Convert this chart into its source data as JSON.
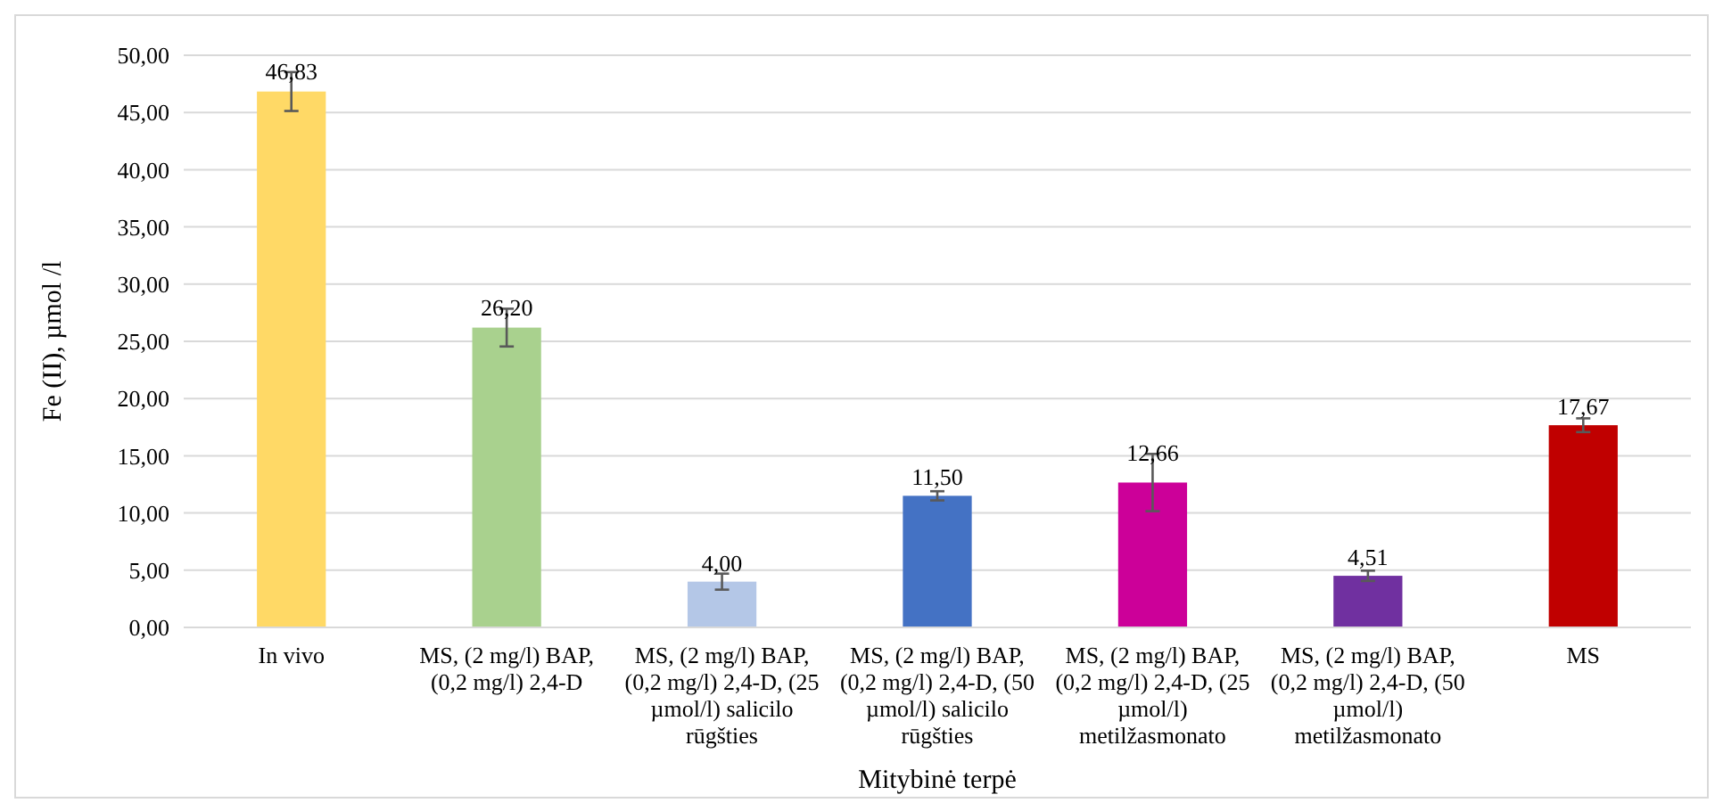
{
  "chart_data": {
    "type": "bar",
    "xlabel": "Mitybinė terpė",
    "ylabel": "Fe (II), µmol /l",
    "categories": [
      "In vivo",
      "MS, (2 mg/l) BAP, (0,2 mg/l) 2,4-D",
      "MS, (2 mg/l) BAP, (0,2 mg/l) 2,4-D, (25 µmol/l) salicilo rūgšties",
      "MS, (2 mg/l) BAP, (0,2 mg/l) 2,4-D, (50 µmol/l) salicilo rūgšties",
      "MS, (2 mg/l) BAP, (0,2 mg/l) 2,4-D, (25 µmol/l) metilžasmonato",
      "MS, (2 mg/l) BAP, (0,2 mg/l) 2,4-D, (50 µmol/l) metilžasmonato",
      "MS"
    ],
    "values": [
      46.83,
      26.2,
      4.0,
      11.5,
      12.66,
      4.51,
      17.67
    ],
    "value_labels": [
      "46,83",
      "26,20",
      "4,00",
      "11,50",
      "12,66",
      "4,51",
      "17,67"
    ],
    "errors": [
      1.7,
      1.65,
      0.7,
      0.4,
      2.5,
      0.45,
      0.6
    ],
    "colors": [
      "#ffd966",
      "#a9d18e",
      "#b4c7e7",
      "#4472c4",
      "#cc0099",
      "#7030a0",
      "#c00000"
    ],
    "ylim": [
      0,
      50
    ],
    "yticks": [
      {
        "value": 0,
        "label": "0,00"
      },
      {
        "value": 5,
        "label": "5,00"
      },
      {
        "value": 10,
        "label": "10,00"
      },
      {
        "value": 15,
        "label": "15,00"
      },
      {
        "value": 20,
        "label": "20,00"
      },
      {
        "value": 25,
        "label": "25,00"
      },
      {
        "value": 30,
        "label": "30,00"
      },
      {
        "value": 35,
        "label": "35,00"
      },
      {
        "value": 40,
        "label": "40,00"
      },
      {
        "value": 45,
        "label": "45,00"
      },
      {
        "value": 50,
        "label": "50,00"
      }
    ],
    "grid": "y"
  }
}
